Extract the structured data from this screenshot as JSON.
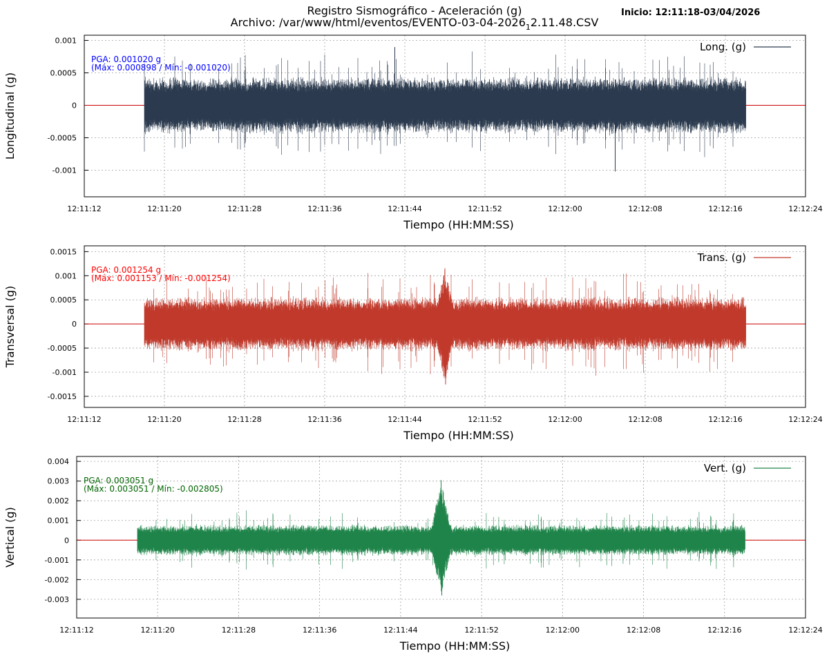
{
  "header": {
    "title": "Registro Sismográfico - Aceleración (g)",
    "file_prefix": "Archivo: /var/www/html/eventos/EVENTO-03-04-2026",
    "file_sub": "1",
    "file_suffix": "2.11.48.CSV",
    "inicio": "Inicio: 12:11:18-03/04/2026"
  },
  "colors": {
    "longitudinal": "#2b3a4e",
    "transversal": "#c0392b",
    "vertical": "#1e8449",
    "baseline": "#cc0000",
    "stats_long": "#0000ff",
    "stats_trans": "#ff0000",
    "stats_vert": "#006400"
  },
  "chart_data": [
    {
      "type": "line",
      "name": "longitudinal",
      "title": "",
      "xlabel": "Tiempo (HH:MM:SS)",
      "ylabel": "Longitudinal (g)",
      "legend": "Long. (g)",
      "legend_position": "top-right",
      "grid": true,
      "xlim": [
        "12:11:12",
        "12:12:24"
      ],
      "ylim": [
        -0.00141,
        0.00108
      ],
      "x_ticks": [
        "12:11:12",
        "12:11:20",
        "12:11:28",
        "12:11:36",
        "12:11:44",
        "12:11:52",
        "12:12:00",
        "12:12:08",
        "12:12:16",
        "12:12:24"
      ],
      "y_ticks": [
        0.001,
        0.0005,
        0,
        -0.0005,
        -0.001
      ],
      "y_tick_labels": [
        "0.001",
        "0.0005",
        "0",
        "-0.0005",
        "-0.001"
      ],
      "signal_start": "12:11:18",
      "signal_end": "12:12:18",
      "peak_max": 0.000898,
      "peak_min": -0.00102,
      "pga_text": "PGA: 0.001020 g",
      "range_text": "(Máx: 0.000898 / Mín: -0.001020)"
    },
    {
      "type": "line",
      "name": "transversal",
      "title": "",
      "xlabel": "Tiempo (HH:MM:SS)",
      "ylabel": "Transversal (g)",
      "legend": "Trans. (g)",
      "legend_position": "top-right",
      "grid": true,
      "xlim": [
        "12:11:12",
        "12:12:24"
      ],
      "ylim": [
        -0.00173,
        0.00162
      ],
      "x_ticks": [
        "12:11:12",
        "12:11:20",
        "12:11:28",
        "12:11:36",
        "12:11:44",
        "12:11:52",
        "12:12:00",
        "12:12:08",
        "12:12:16",
        "12:12:24"
      ],
      "y_ticks": [
        0.0015,
        0.001,
        0.0005,
        0,
        -0.0005,
        -0.001,
        -0.0015
      ],
      "y_tick_labels": [
        "0.0015",
        "0.001",
        "0.0005",
        "0",
        "-0.0005",
        "-0.001",
        "-0.0015"
      ],
      "signal_start": "12:11:18",
      "signal_end": "12:12:18",
      "event_time": "12:11:48",
      "peak_max": 0.001153,
      "peak_min": -0.001254,
      "pga_text": "PGA: 0.001254 g",
      "range_text": "(Máx: 0.001153 / Mín: -0.001254)"
    },
    {
      "type": "line",
      "name": "vertical",
      "title": "",
      "xlabel": "Tiempo (HH:MM:SS)",
      "ylabel": "Vertical (g)",
      "legend": "Vert. (g)",
      "legend_position": "top-right",
      "grid": true,
      "xlim": [
        "12:11:12",
        "12:12:24"
      ],
      "ylim": [
        -0.00395,
        0.00425
      ],
      "x_ticks": [
        "12:11:12",
        "12:11:20",
        "12:11:28",
        "12:11:36",
        "12:11:44",
        "12:11:52",
        "12:12:00",
        "12:12:08",
        "12:12:16",
        "12:12:24"
      ],
      "y_ticks": [
        0.004,
        0.003,
        0.002,
        0.001,
        0,
        -0.001,
        -0.002,
        -0.003
      ],
      "y_tick_labels": [
        "0.004",
        "0.003",
        "0.002",
        "0.001",
        "0",
        "-0.001",
        "-0.002",
        "-0.003"
      ],
      "signal_start": "12:11:18",
      "signal_end": "12:12:18",
      "event_time": "12:11:48",
      "peak_max": 0.003051,
      "peak_min": -0.002805,
      "pga_text": "PGA: 0.003051 g",
      "range_text": "(Máx: 0.003051 / Mín: -0.002805)"
    }
  ]
}
